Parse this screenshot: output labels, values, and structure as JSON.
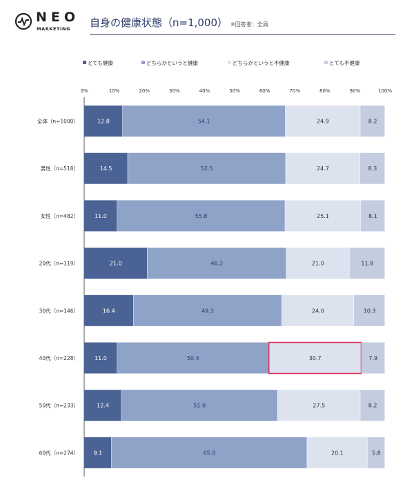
{
  "header": {
    "logo_text": "NEO",
    "logo_subtext": "MARKETING",
    "title": "自身の健康状態（n=1,000）",
    "note": "※回答者：全員"
  },
  "chart_data": {
    "type": "bar",
    "orientation": "horizontal",
    "stacked": true,
    "categories": [
      "全体（n=1000）",
      "男性（n=518）",
      "女性（n=482）",
      "20代（n=119）",
      "30代（n=146）",
      "40代（n=228）",
      "50代（n=233）",
      "60代（n=274）"
    ],
    "series": [
      {
        "name": "とても健康",
        "color": "#4a6394",
        "label_color": "#ffffff",
        "values": [
          12.8,
          14.5,
          11.0,
          21.0,
          16.4,
          11.0,
          12.4,
          9.1
        ]
      },
      {
        "name": "どちらかというと健康",
        "color": "#8fa3c8",
        "label_color": "#2b3a6b",
        "values": [
          54.1,
          52.5,
          55.8,
          46.2,
          49.3,
          50.4,
          51.9,
          65.0
        ]
      },
      {
        "name": "どちらかというと不健康",
        "color": "#dde3ee",
        "label_color": "#333333",
        "values": [
          24.9,
          24.7,
          25.1,
          21.0,
          24.0,
          30.7,
          27.5,
          20.1
        ]
      },
      {
        "name": "とても不健康",
        "color": "#c4cde0",
        "label_color": "#333333",
        "values": [
          8.2,
          8.3,
          8.1,
          11.8,
          10.3,
          7.9,
          8.2,
          5.8
        ]
      }
    ],
    "x_ticks": [
      "0%",
      "10%",
      "20%",
      "30%",
      "40%",
      "50%",
      "60%",
      "70%",
      "80%",
      "90%",
      "100%"
    ],
    "xlim": [
      0,
      100
    ],
    "legend_position": "top-left",
    "highlight": {
      "category_index": 5,
      "series_index": 2,
      "color": "#d8345f"
    }
  }
}
